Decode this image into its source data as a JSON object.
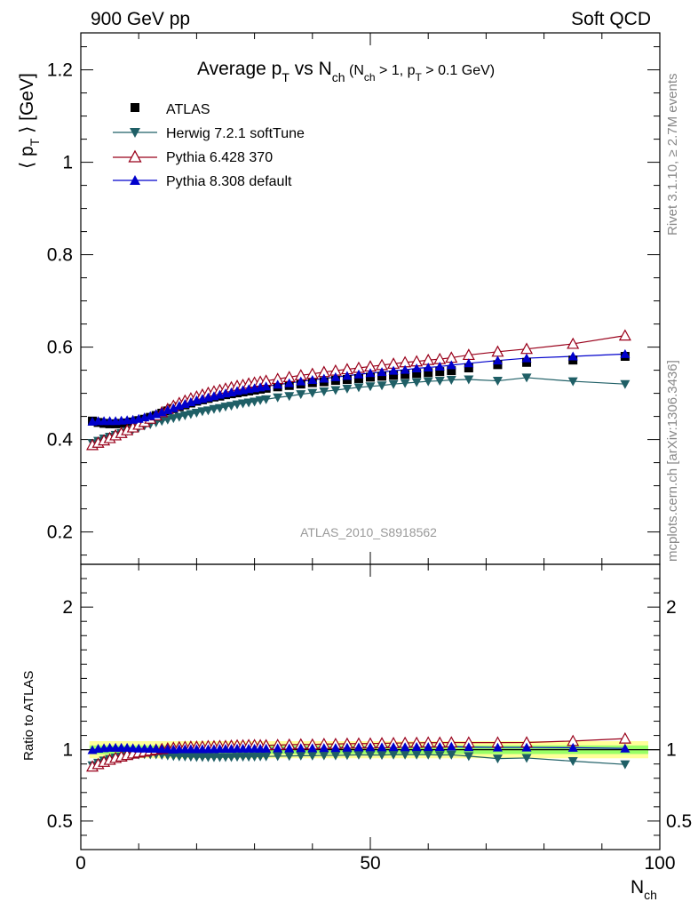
{
  "header": {
    "left": "900 GeV pp",
    "right": "Soft QCD"
  },
  "side_labels": {
    "rivet": "Rivet 3.1.10, ≥ 2.7M events",
    "mcplots": "mcplots.cern.ch [arXiv:1306.3436]"
  },
  "watermark": "ATLAS_2010_S8918562",
  "colors": {
    "atlas": "#000000",
    "herwig": "#1f5f66",
    "pythia6": "#99001a",
    "pythia8": "#0000cc",
    "band_inner": "#99ff66",
    "band_outer": "#ffff99"
  },
  "chart_data": [
    {
      "type": "scatter",
      "panel": "main",
      "title_main": "Average p",
      "title_sub1": "T",
      "title_mid": " vs N",
      "title_sub2": "ch",
      "title_paren_1": " (N",
      "title_paren_sub1": "ch",
      "title_paren_2": " > 1, p",
      "title_paren_sub2": "T",
      "title_paren_3": " > 0.1 GeV)",
      "ylabel_1": "⟨ p",
      "ylabel_sub": "T",
      "ylabel_2": " ⟩  [GeV]",
      "xlim": [
        0,
        100
      ],
      "ylim": [
        0.13,
        1.28
      ],
      "yticks": [
        "0.2",
        "0.4",
        "0.6",
        "0.8",
        "1",
        "1.2"
      ],
      "legend_position": "top-left",
      "series": [
        {
          "name": "ATLAS",
          "marker": "square",
          "x": [
            2,
            3,
            4,
            5,
            6,
            7,
            8,
            9,
            10,
            11,
            12,
            13,
            14,
            15,
            16,
            17,
            18,
            19,
            20,
            21,
            22,
            23,
            24,
            25,
            26,
            27,
            28,
            29,
            30,
            31,
            32,
            34,
            36,
            38,
            40,
            42,
            44,
            46,
            48,
            50,
            52,
            54,
            56,
            58,
            60,
            62,
            64,
            67,
            72,
            77,
            85,
            94
          ],
          "y": [
            0.44,
            0.437,
            0.435,
            0.434,
            0.434,
            0.435,
            0.436,
            0.438,
            0.441,
            0.444,
            0.448,
            0.452,
            0.457,
            0.462,
            0.467,
            0.471,
            0.475,
            0.479,
            0.483,
            0.486,
            0.489,
            0.492,
            0.494,
            0.497,
            0.499,
            0.501,
            0.503,
            0.505,
            0.507,
            0.509,
            0.511,
            0.514,
            0.517,
            0.52,
            0.523,
            0.525,
            0.528,
            0.53,
            0.532,
            0.535,
            0.537,
            0.539,
            0.541,
            0.543,
            0.545,
            0.547,
            0.549,
            0.555,
            0.562,
            0.567,
            0.572,
            0.58
          ]
        },
        {
          "name": "Herwig 7.2.1 softTune",
          "marker": "triangle-down",
          "x": [
            2,
            3,
            4,
            5,
            6,
            7,
            8,
            9,
            10,
            11,
            12,
            13,
            14,
            15,
            16,
            17,
            18,
            19,
            20,
            21,
            22,
            23,
            24,
            25,
            26,
            27,
            28,
            29,
            30,
            31,
            32,
            34,
            36,
            38,
            40,
            42,
            44,
            46,
            48,
            50,
            52,
            54,
            56,
            58,
            60,
            62,
            64,
            67,
            72,
            77,
            85,
            94
          ],
          "y": [
            0.392,
            0.397,
            0.402,
            0.406,
            0.41,
            0.414,
            0.418,
            0.422,
            0.426,
            0.43,
            0.433,
            0.437,
            0.44,
            0.443,
            0.446,
            0.449,
            0.452,
            0.455,
            0.458,
            0.461,
            0.463,
            0.466,
            0.468,
            0.471,
            0.473,
            0.476,
            0.478,
            0.48,
            0.482,
            0.485,
            0.487,
            0.491,
            0.494,
            0.498,
            0.501,
            0.504,
            0.507,
            0.51,
            0.513,
            0.515,
            0.517,
            0.52,
            0.522,
            0.524,
            0.526,
            0.527,
            0.529,
            0.53,
            0.527,
            0.534,
            0.526,
            0.52
          ]
        },
        {
          "name": "Pythia 6.428 370",
          "marker": "triangle-up-open",
          "x": [
            2,
            3,
            4,
            5,
            6,
            7,
            8,
            9,
            10,
            11,
            12,
            13,
            14,
            15,
            16,
            17,
            18,
            19,
            20,
            21,
            22,
            23,
            24,
            25,
            26,
            27,
            28,
            29,
            30,
            31,
            32,
            34,
            36,
            38,
            40,
            42,
            44,
            46,
            48,
            50,
            52,
            54,
            56,
            58,
            60,
            62,
            64,
            67,
            72,
            77,
            85,
            94
          ],
          "y": [
            0.388,
            0.393,
            0.398,
            0.403,
            0.409,
            0.414,
            0.42,
            0.426,
            0.432,
            0.438,
            0.445,
            0.452,
            0.459,
            0.466,
            0.473,
            0.479,
            0.484,
            0.489,
            0.493,
            0.497,
            0.501,
            0.504,
            0.507,
            0.51,
            0.513,
            0.516,
            0.518,
            0.521,
            0.523,
            0.525,
            0.527,
            0.531,
            0.535,
            0.539,
            0.542,
            0.546,
            0.549,
            0.552,
            0.555,
            0.558,
            0.561,
            0.564,
            0.567,
            0.569,
            0.572,
            0.574,
            0.577,
            0.583,
            0.59,
            0.596,
            0.607,
            0.625
          ]
        },
        {
          "name": "Pythia 8.308 default",
          "marker": "triangle-up",
          "x": [
            2,
            3,
            4,
            5,
            6,
            7,
            8,
            9,
            10,
            11,
            12,
            13,
            14,
            15,
            16,
            17,
            18,
            19,
            20,
            21,
            22,
            23,
            24,
            25,
            26,
            27,
            28,
            29,
            30,
            31,
            32,
            34,
            36,
            38,
            40,
            42,
            44,
            46,
            48,
            50,
            52,
            54,
            56,
            58,
            60,
            62,
            64,
            67,
            72,
            77,
            85,
            94
          ],
          "y": [
            0.439,
            0.44,
            0.44,
            0.44,
            0.44,
            0.441,
            0.442,
            0.443,
            0.445,
            0.448,
            0.451,
            0.455,
            0.459,
            0.464,
            0.468,
            0.473,
            0.477,
            0.481,
            0.485,
            0.488,
            0.491,
            0.494,
            0.497,
            0.5,
            0.502,
            0.505,
            0.507,
            0.509,
            0.511,
            0.513,
            0.515,
            0.519,
            0.522,
            0.526,
            0.529,
            0.532,
            0.535,
            0.538,
            0.541,
            0.544,
            0.546,
            0.549,
            0.551,
            0.554,
            0.556,
            0.558,
            0.561,
            0.565,
            0.571,
            0.576,
            0.58,
            0.585
          ]
        }
      ]
    },
    {
      "type": "scatter",
      "panel": "ratio",
      "ylabel": "Ratio to ATLAS",
      "xlabel_main": "N",
      "xlabel_sub": "ch",
      "xlim": [
        0,
        100
      ],
      "ylim": [
        0.3,
        2.3
      ],
      "yticks": [
        "0.5",
        "1",
        "2"
      ],
      "xticks": [
        "0",
        "50",
        "100"
      ],
      "band_x": [
        1.5,
        98
      ],
      "band_inner_halfwidth": 0.03,
      "band_outer_halfwidth": 0.06,
      "series": [
        {
          "name": "Herwig 7.2.1 softTune",
          "x": [
            2,
            3,
            4,
            5,
            6,
            7,
            8,
            9,
            10,
            11,
            12,
            13,
            14,
            15,
            16,
            17,
            18,
            19,
            20,
            21,
            22,
            23,
            24,
            25,
            26,
            27,
            28,
            29,
            30,
            31,
            32,
            34,
            36,
            38,
            40,
            42,
            44,
            46,
            48,
            50,
            52,
            54,
            56,
            58,
            60,
            62,
            64,
            67,
            72,
            77,
            85,
            94
          ],
          "y": [
            0.89,
            0.908,
            0.924,
            0.935,
            0.945,
            0.952,
            0.959,
            0.963,
            0.966,
            0.968,
            0.967,
            0.967,
            0.963,
            0.959,
            0.955,
            0.953,
            0.952,
            0.95,
            0.948,
            0.948,
            0.947,
            0.947,
            0.947,
            0.948,
            0.948,
            0.95,
            0.95,
            0.95,
            0.951,
            0.953,
            0.953,
            0.955,
            0.956,
            0.958,
            0.958,
            0.96,
            0.96,
            0.962,
            0.964,
            0.963,
            0.963,
            0.965,
            0.965,
            0.965,
            0.965,
            0.963,
            0.964,
            0.955,
            0.938,
            0.942,
            0.92,
            0.897
          ]
        },
        {
          "name": "Pythia 6.428 370",
          "x": [
            2,
            3,
            4,
            5,
            6,
            7,
            8,
            9,
            10,
            11,
            12,
            13,
            14,
            15,
            16,
            17,
            18,
            19,
            20,
            21,
            22,
            23,
            24,
            25,
            26,
            27,
            28,
            29,
            30,
            31,
            32,
            34,
            36,
            38,
            40,
            42,
            44,
            46,
            48,
            50,
            52,
            54,
            56,
            58,
            60,
            62,
            64,
            67,
            72,
            77,
            85,
            94
          ],
          "y": [
            0.882,
            0.899,
            0.915,
            0.929,
            0.942,
            0.952,
            0.963,
            0.973,
            0.98,
            0.986,
            0.993,
            1.0,
            1.004,
            1.009,
            1.013,
            1.017,
            1.019,
            1.021,
            1.021,
            1.022,
            1.025,
            1.024,
            1.026,
            1.026,
            1.028,
            1.03,
            1.03,
            1.032,
            1.032,
            1.031,
            1.031,
            1.033,
            1.035,
            1.037,
            1.036,
            1.04,
            1.04,
            1.042,
            1.043,
            1.043,
            1.045,
            1.046,
            1.048,
            1.048,
            1.05,
            1.049,
            1.051,
            1.05,
            1.05,
            1.051,
            1.061,
            1.078
          ]
        },
        {
          "name": "Pythia 8.308 default",
          "x": [
            2,
            3,
            4,
            5,
            6,
            7,
            8,
            9,
            10,
            11,
            12,
            13,
            14,
            15,
            16,
            17,
            18,
            19,
            20,
            21,
            22,
            23,
            24,
            25,
            26,
            27,
            28,
            29,
            30,
            31,
            32,
            34,
            36,
            38,
            40,
            42,
            44,
            46,
            48,
            50,
            52,
            54,
            56,
            58,
            60,
            62,
            64,
            67,
            72,
            77,
            85,
            94
          ],
          "y": [
            0.998,
            1.007,
            1.011,
            1.014,
            1.014,
            1.014,
            1.014,
            1.011,
            1.009,
            1.009,
            1.007,
            1.007,
            1.004,
            1.004,
            1.002,
            1.004,
            1.004,
            1.004,
            1.004,
            1.004,
            1.004,
            1.004,
            1.006,
            1.006,
            1.006,
            1.008,
            1.008,
            1.008,
            1.008,
            1.008,
            1.008,
            1.01,
            1.01,
            1.012,
            1.011,
            1.013,
            1.013,
            1.015,
            1.017,
            1.017,
            1.017,
            1.019,
            1.018,
            1.02,
            1.02,
            1.02,
            1.022,
            1.018,
            1.016,
            1.016,
            1.014,
            1.009
          ]
        }
      ]
    }
  ]
}
